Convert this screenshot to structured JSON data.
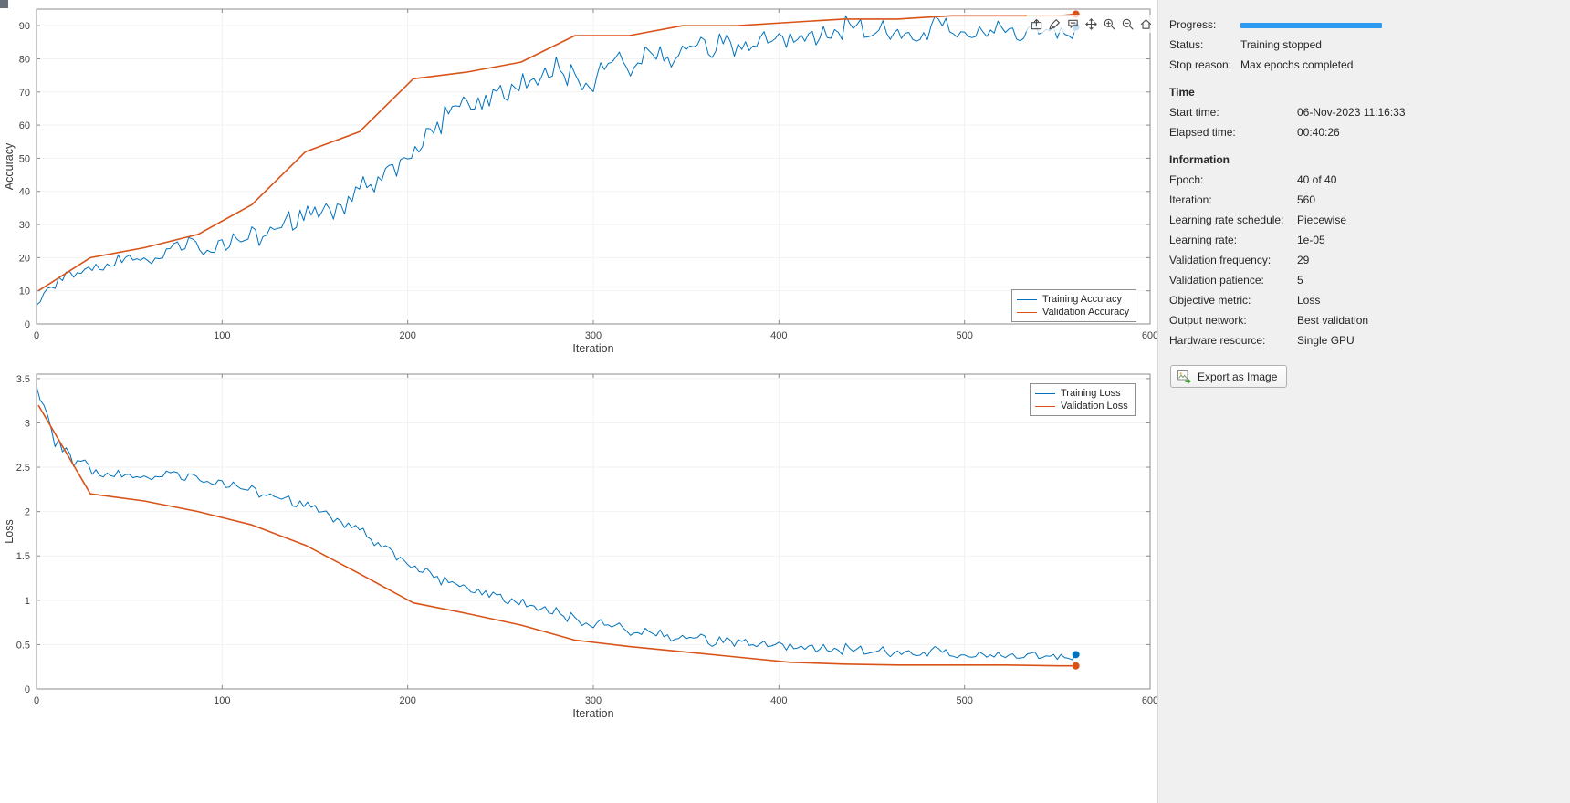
{
  "colors": {
    "training": "#0072BD",
    "validation": "#D95319",
    "progress_bar": "#2e9bf0",
    "panel_background": "#f0f0f0",
    "figure_background": "#ffffff"
  },
  "toolbar": {
    "icons": [
      "export",
      "brush",
      "datatips",
      "pan",
      "zoom-in",
      "zoom-out",
      "home"
    ]
  },
  "panel": {
    "progress_label": "Progress:",
    "progress_percent": 100,
    "status_label": "Status:",
    "status_value": "Training stopped",
    "stop_reason_label": "Stop reason:",
    "stop_reason_value": "Max epochs completed",
    "time_header": "Time",
    "time_rows": [
      {
        "label": "Start time:",
        "value": "06-Nov-2023 11:16:33"
      },
      {
        "label": "Elapsed time:",
        "value": "00:40:26"
      }
    ],
    "info_header": "Information",
    "info_rows": [
      {
        "label": "Epoch:",
        "value": "40 of 40"
      },
      {
        "label": "Iteration:",
        "value": "560"
      },
      {
        "label": "Learning rate schedule:",
        "value": "Piecewise"
      },
      {
        "label": "Learning rate:",
        "value": "1e-05"
      },
      {
        "label": "Validation frequency:",
        "value": "29"
      },
      {
        "label": "Validation patience:",
        "value": "5"
      },
      {
        "label": "Objective metric:",
        "value": "Loss"
      },
      {
        "label": "Output network:",
        "value": "Best validation"
      },
      {
        "label": "Hardware resource:",
        "value": "Single GPU"
      }
    ],
    "export_button_label": "Export as Image"
  },
  "chart_data": [
    {
      "type": "line",
      "title": "",
      "xlabel": "Iteration",
      "ylabel": "Accuracy",
      "xlim": [
        0,
        600
      ],
      "ylim": [
        0,
        95
      ],
      "xticks": [
        0,
        100,
        200,
        300,
        400,
        500,
        600
      ],
      "yticks": [
        0,
        10,
        20,
        30,
        40,
        50,
        60,
        70,
        80,
        90
      ],
      "grid": false,
      "legend": {
        "position": "bottom-right",
        "entries": [
          "Training Accuracy",
          "Validation Accuracy"
        ]
      },
      "series": [
        {
          "name": "Training Accuracy",
          "color": "#0072BD",
          "line_width": 1,
          "end_marker": true,
          "noise_amplitude": [
            [
              0,
              1.5
            ],
            [
              60,
              2.5
            ],
            [
              150,
              4.5
            ],
            [
              250,
              5
            ],
            [
              350,
              4
            ],
            [
              560,
              3.5
            ]
          ],
          "trend": [
            [
              0,
              7
            ],
            [
              10,
              12
            ],
            [
              20,
              15
            ],
            [
              30,
              17
            ],
            [
              40,
              18
            ],
            [
              50,
              20
            ],
            [
              60,
              19
            ],
            [
              70,
              21
            ],
            [
              80,
              24
            ],
            [
              90,
              22
            ],
            [
              100,
              24
            ],
            [
              110,
              26
            ],
            [
              120,
              27
            ],
            [
              130,
              29
            ],
            [
              140,
              32
            ],
            [
              150,
              34
            ],
            [
              160,
              36
            ],
            [
              170,
              39
            ],
            [
              180,
              44
            ],
            [
              190,
              47
            ],
            [
              200,
              51
            ],
            [
              210,
              55
            ],
            [
              220,
              63
            ],
            [
              230,
              67
            ],
            [
              240,
              66
            ],
            [
              250,
              69
            ],
            [
              260,
              71
            ],
            [
              270,
              73
            ],
            [
              280,
              77
            ],
            [
              290,
              75
            ],
            [
              300,
              73
            ],
            [
              310,
              79
            ],
            [
              320,
              78
            ],
            [
              330,
              81
            ],
            [
              340,
              80
            ],
            [
              350,
              83
            ],
            [
              360,
              83
            ],
            [
              370,
              85
            ],
            [
              380,
              82
            ],
            [
              390,
              86
            ],
            [
              400,
              85
            ],
            [
              410,
              86
            ],
            [
              420,
              86
            ],
            [
              430,
              88
            ],
            [
              440,
              90
            ],
            [
              450,
              88
            ],
            [
              460,
              89
            ],
            [
              470,
              87
            ],
            [
              480,
              88
            ],
            [
              490,
              90
            ],
            [
              500,
              89
            ],
            [
              510,
              88
            ],
            [
              520,
              90
            ],
            [
              530,
              87
            ],
            [
              540,
              89
            ],
            [
              550,
              88
            ],
            [
              560,
              88
            ]
          ]
        },
        {
          "name": "Validation Accuracy",
          "color": "#D95319",
          "line_width": 1.6,
          "end_marker": true,
          "noise_amplitude": 0,
          "trend": [
            [
              1,
              10
            ],
            [
              29,
              20
            ],
            [
              58,
              23
            ],
            [
              87,
              27
            ],
            [
              116,
              36
            ],
            [
              145,
              52
            ],
            [
              174,
              58
            ],
            [
              203,
              74
            ],
            [
              232,
              76
            ],
            [
              261,
              79
            ],
            [
              290,
              87
            ],
            [
              319,
              87
            ],
            [
              348,
              90
            ],
            [
              377,
              90
            ],
            [
              406,
              91
            ],
            [
              435,
              92
            ],
            [
              464,
              92
            ],
            [
              493,
              93
            ],
            [
              522,
              93
            ],
            [
              551,
              93
            ],
            [
              560,
              93.5
            ]
          ]
        }
      ]
    },
    {
      "type": "line",
      "title": "",
      "xlabel": "Iteration",
      "ylabel": "Loss",
      "xlim": [
        0,
        600
      ],
      "ylim": [
        0,
        3.55
      ],
      "xticks": [
        0,
        100,
        200,
        300,
        400,
        500,
        600
      ],
      "yticks": [
        0,
        0.5,
        1,
        1.5,
        2,
        2.5,
        3,
        3.5
      ],
      "grid": false,
      "legend": {
        "position": "top-right",
        "entries": [
          "Training Loss",
          "Validation Loss"
        ]
      },
      "series": [
        {
          "name": "Training Loss",
          "color": "#0072BD",
          "line_width": 1,
          "end_marker": true,
          "noise_amplitude": [
            [
              0,
              0.1
            ],
            [
              40,
              0.06
            ],
            [
              150,
              0.07
            ],
            [
              250,
              0.08
            ],
            [
              400,
              0.07
            ],
            [
              560,
              0.06
            ]
          ],
          "trend": [
            [
              0,
              3.5
            ],
            [
              5,
              3.1
            ],
            [
              10,
              2.8
            ],
            [
              15,
              2.65
            ],
            [
              20,
              2.55
            ],
            [
              25,
              2.6
            ],
            [
              30,
              2.45
            ],
            [
              40,
              2.42
            ],
            [
              50,
              2.4
            ],
            [
              60,
              2.38
            ],
            [
              70,
              2.42
            ],
            [
              80,
              2.38
            ],
            [
              90,
              2.35
            ],
            [
              100,
              2.32
            ],
            [
              110,
              2.28
            ],
            [
              120,
              2.22
            ],
            [
              130,
              2.16
            ],
            [
              140,
              2.1
            ],
            [
              150,
              2.05
            ],
            [
              160,
              1.95
            ],
            [
              170,
              1.85
            ],
            [
              180,
              1.72
            ],
            [
              190,
              1.58
            ],
            [
              200,
              1.42
            ],
            [
              210,
              1.3
            ],
            [
              220,
              1.22
            ],
            [
              230,
              1.15
            ],
            [
              240,
              1.08
            ],
            [
              250,
              1.02
            ],
            [
              260,
              0.96
            ],
            [
              270,
              0.9
            ],
            [
              280,
              0.86
            ],
            [
              290,
              0.8
            ],
            [
              300,
              0.74
            ],
            [
              310,
              0.7
            ],
            [
              320,
              0.66
            ],
            [
              330,
              0.62
            ],
            [
              340,
              0.6
            ],
            [
              350,
              0.57
            ],
            [
              360,
              0.55
            ],
            [
              370,
              0.53
            ],
            [
              380,
              0.52
            ],
            [
              390,
              0.5
            ],
            [
              400,
              0.48
            ],
            [
              420,
              0.45
            ],
            [
              440,
              0.44
            ],
            [
              460,
              0.42
            ],
            [
              480,
              0.41
            ],
            [
              500,
              0.4
            ],
            [
              520,
              0.38
            ],
            [
              540,
              0.37
            ],
            [
              560,
              0.36
            ]
          ]
        },
        {
          "name": "Validation Loss",
          "color": "#D95319",
          "line_width": 1.6,
          "end_marker": true,
          "noise_amplitude": 0,
          "trend": [
            [
              1,
              3.2
            ],
            [
              29,
              2.2
            ],
            [
              58,
              2.12
            ],
            [
              87,
              2.0
            ],
            [
              116,
              1.85
            ],
            [
              145,
              1.62
            ],
            [
              174,
              1.3
            ],
            [
              203,
              0.97
            ],
            [
              232,
              0.85
            ],
            [
              261,
              0.72
            ],
            [
              290,
              0.55
            ],
            [
              319,
              0.48
            ],
            [
              348,
              0.42
            ],
            [
              377,
              0.36
            ],
            [
              406,
              0.3
            ],
            [
              435,
              0.28
            ],
            [
              464,
              0.27
            ],
            [
              493,
              0.27
            ],
            [
              522,
              0.27
            ],
            [
              551,
              0.26
            ],
            [
              560,
              0.26
            ]
          ]
        }
      ]
    }
  ]
}
